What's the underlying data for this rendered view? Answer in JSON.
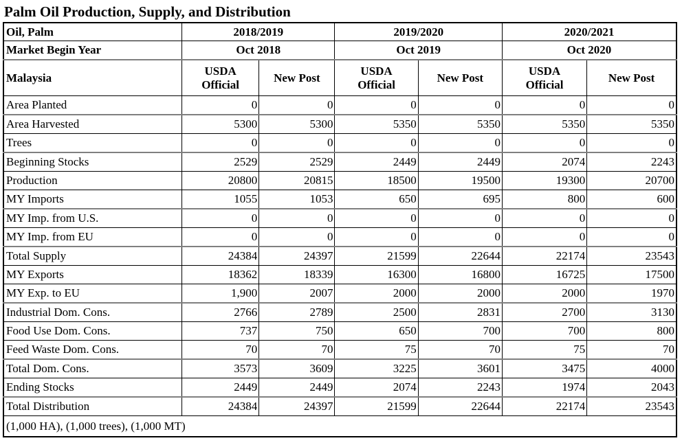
{
  "title": "Palm Oil Production, Supply, and Distribution",
  "header": {
    "product_label": "Oil, Palm",
    "market_begin_label": "Market Begin Year",
    "country_label": "Malaysia",
    "years": [
      {
        "year": "2018/2019",
        "begin": "Oct 2018"
      },
      {
        "year": "2019/2020",
        "begin": "Oct 2019"
      },
      {
        "year": "2020/2021",
        "begin": "Oct 2020"
      }
    ],
    "source_labels": [
      "USDA Official",
      "New Post"
    ]
  },
  "rows": [
    {
      "label": "Area Planted",
      "values": [
        "0",
        "0",
        "0",
        "0",
        "0",
        "0"
      ],
      "group_end": true
    },
    {
      "label": "Area Harvested",
      "values": [
        "5300",
        "5300",
        "5350",
        "5350",
        "5350",
        "5350"
      ],
      "group_end": false
    },
    {
      "label": "Trees",
      "values": [
        "0",
        "0",
        "0",
        "0",
        "0",
        "0"
      ],
      "group_end": true
    },
    {
      "label": "Beginning Stocks",
      "values": [
        "2529",
        "2529",
        "2449",
        "2449",
        "2074",
        "2243"
      ],
      "group_end": false
    },
    {
      "label": "Production",
      "values": [
        "20800",
        "20815",
        "18500",
        "19500",
        "19300",
        "20700"
      ],
      "group_end": false
    },
    {
      "label": "MY Imports",
      "values": [
        "1055",
        "1053",
        "650",
        "695",
        "800",
        "600"
      ],
      "group_end": true
    },
    {
      "label": "MY Imp. from U.S.",
      "values": [
        "0",
        "0",
        "0",
        "0",
        "0",
        "0"
      ],
      "group_end": false
    },
    {
      "label": "MY Imp. from EU",
      "values": [
        "0",
        "0",
        "0",
        "0",
        "0",
        "0"
      ],
      "group_end": true
    },
    {
      "label": "Total Supply",
      "values": [
        "24384",
        "24397",
        "21599",
        "22644",
        "22174",
        "23543"
      ],
      "group_end": false
    },
    {
      "label": "MY Exports",
      "values": [
        "18362",
        "18339",
        "16300",
        "16800",
        "16725",
        "17500"
      ],
      "group_end": false
    },
    {
      "label": "MY Exp. to EU",
      "values": [
        "1,900",
        "2007",
        "2000",
        "2000",
        "2000",
        "1970"
      ],
      "group_end": true
    },
    {
      "label": "Industrial Dom. Cons.",
      "values": [
        "2766",
        "2789",
        "2500",
        "2831",
        "2700",
        "3130"
      ],
      "group_end": false
    },
    {
      "label": "Food Use Dom. Cons.",
      "values": [
        "737",
        "750",
        "650",
        "700",
        "700",
        "800"
      ],
      "group_end": false
    },
    {
      "label": "Feed Waste Dom. Cons.",
      "values": [
        "70",
        "70",
        "75",
        "70",
        "75",
        "70"
      ],
      "group_end": true
    },
    {
      "label": "Total Dom. Cons.",
      "values": [
        "3573",
        "3609",
        "3225",
        "3601",
        "3475",
        "4000"
      ],
      "group_end": false
    },
    {
      "label": "Ending Stocks",
      "values": [
        "2449",
        "2449",
        "2074",
        "2243",
        "1974",
        "2043"
      ],
      "group_end": true
    },
    {
      "label": "Total Distribution",
      "values": [
        "24384",
        "24397",
        "21599",
        "22644",
        "22174",
        "23543"
      ],
      "group_end": false
    }
  ],
  "footer": "(1,000 HA), (1,000 trees), (1,000 MT)"
}
